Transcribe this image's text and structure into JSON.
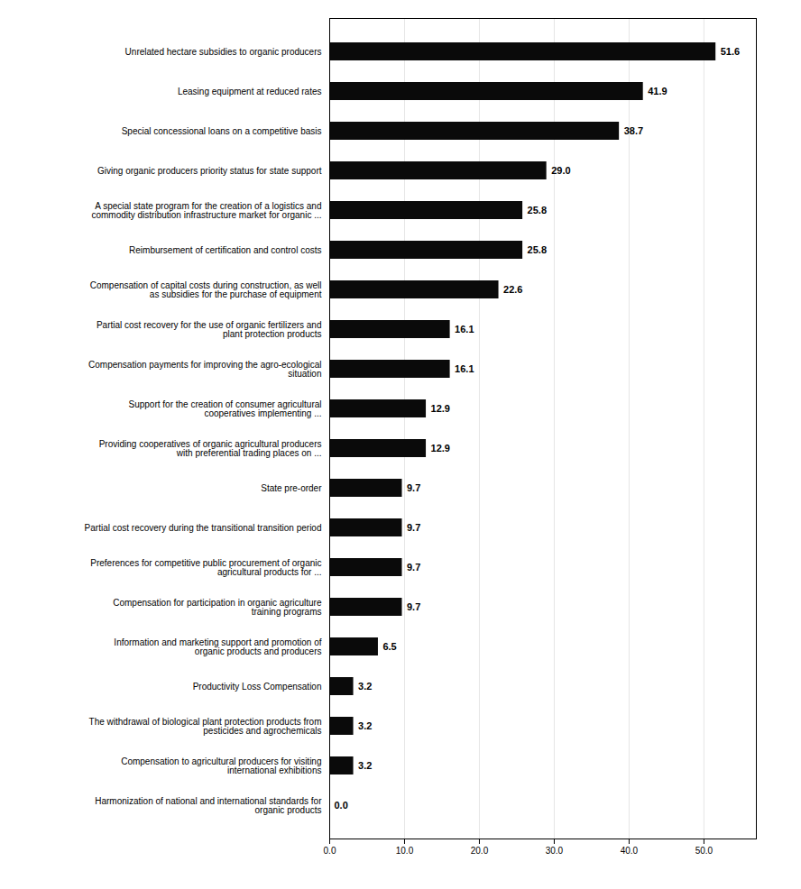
{
  "chart_data": {
    "type": "bar",
    "orientation": "horizontal",
    "categories": [
      "Unrelated hectare subsidies to organic producers",
      "Leasing equipment at reduced rates",
      "Special concessional loans on a competitive basis",
      "Giving organic producers priority status for state support",
      "A special state program for the creation of a logistics and\ncommodity distribution infrastructure market for organic ...",
      "Reimbursement of certification and control costs",
      "Compensation of capital costs during construction, as well\nas subsidies for the purchase of equipment",
      "Partial cost recovery for the use of organic fertilizers and\nplant protection products",
      "Compensation payments for improving the agro-ecological\nsituation",
      "Support for the creation of consumer agricultural\ncooperatives implementing ...",
      "Providing cooperatives of organic agricultural producers\nwith preferential trading places on ...",
      "State pre-order",
      "Partial cost recovery during the transitional transition period",
      "Preferences for competitive public procurement of organic\nagricultural products for ...",
      "Compensation for participation in organic agriculture\ntraining programs",
      "Information and marketing support and promotion of\norganic products and producers",
      "Productivity Loss Compensation",
      "The withdrawal of biological plant protection products from\npesticides and agrochemicals",
      "Compensation to agricultural producers for visiting\ninternational exhibitions",
      "Harmonization of national and international standards for\norganic products"
    ],
    "values": [
      51.6,
      41.9,
      38.7,
      29.0,
      25.8,
      25.8,
      22.6,
      16.1,
      16.1,
      12.9,
      12.9,
      9.7,
      9.7,
      9.7,
      9.7,
      6.5,
      3.2,
      3.2,
      3.2,
      0.0
    ],
    "value_labels": [
      "51.6",
      "41.9",
      "38.7",
      "29.0",
      "25.8",
      "25.8",
      "22.6",
      "16.1",
      "16.1",
      "12.9",
      "12.9",
      "9.7",
      "9.7",
      "9.7",
      "9.7",
      "6.5",
      "3.2",
      "3.2",
      "3.2",
      "0.0"
    ],
    "data_labels": true,
    "color": "#0a0a0a",
    "xlim": [
      0,
      57
    ],
    "xticks": [
      {
        "value": 0,
        "label": "0.0"
      },
      {
        "value": 10,
        "label": "10.0"
      },
      {
        "value": 20,
        "label": "20.0"
      },
      {
        "value": 30,
        "label": "30.0"
      },
      {
        "value": 40,
        "label": "40.0"
      },
      {
        "value": 50,
        "label": "50.0"
      }
    ],
    "grid": true
  }
}
